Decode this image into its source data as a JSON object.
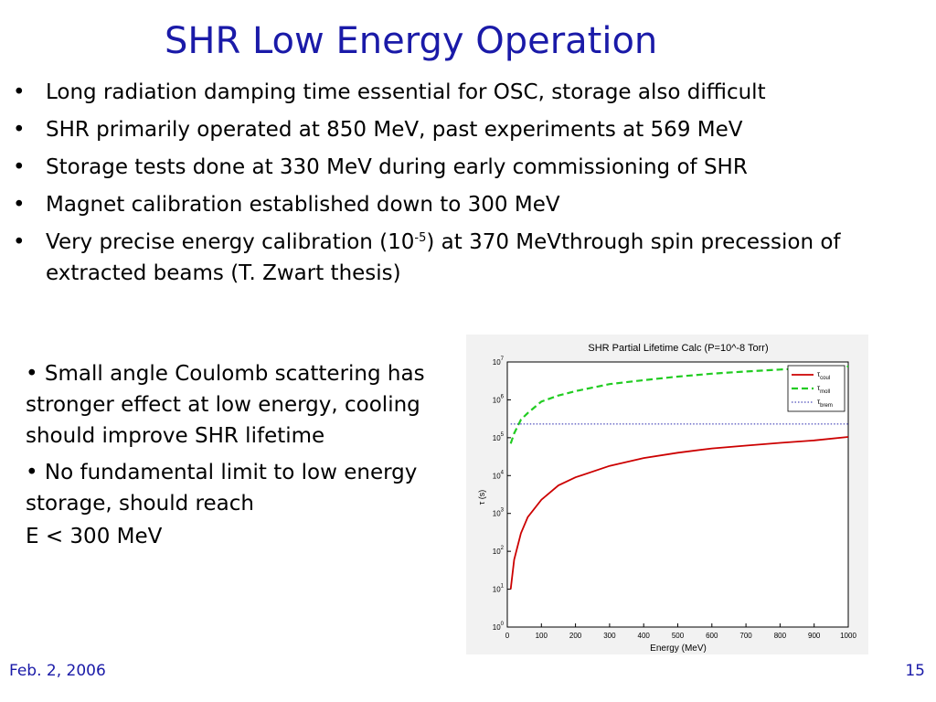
{
  "slide": {
    "title": "SHR Low Energy Operation",
    "bullets": [
      {
        "text": "Long radiation damping time essential for OSC, storage also difficult"
      },
      {
        "text": "SHR primarily operated at 850 MeV, past experiments at 569 MeV"
      },
      {
        "text": "Storage tests done at 330 MeV during early commissioning of SHR"
      },
      {
        "text": "Magnet calibration established down to 300 MeV"
      },
      {
        "text_before": "Very precise energy calibration (10",
        "sup": "-5",
        "text_after": ") at 370 MeVthrough spin precession of extracted beams (T. Zwart thesis)"
      }
    ],
    "left_text": {
      "p1": "• Small angle Coulomb scattering has stronger effect at low energy, cooling should improve SHR lifetime",
      "p2_line1": "• No fundamental limit to low energy storage, should reach",
      "p2_line2": "E < 300 MeV"
    },
    "footer": {
      "date": "Feb. 2, 2006",
      "page": "15"
    }
  },
  "chart_data": {
    "type": "line",
    "title": "SHR Partial Lifetime Calc (P=10^-8 Torr)",
    "xlabel": "Energy (MeV)",
    "ylabel": "τ (s)",
    "xlim": [
      0,
      1000
    ],
    "ylim_log10": [
      0,
      7
    ],
    "y_scale": "log",
    "xticks": [
      0,
      100,
      200,
      300,
      400,
      500,
      600,
      700,
      800,
      900,
      1000
    ],
    "yticks_exp": [
      0,
      1,
      2,
      3,
      4,
      5,
      6,
      7
    ],
    "grid": false,
    "legend_position": "top-right",
    "series": [
      {
        "name_base": "τ",
        "name_sub": "coul",
        "color": "#cc0000",
        "style": "solid",
        "x": [
          10,
          20,
          40,
          60,
          100,
          150,
          200,
          300,
          400,
          500,
          600,
          700,
          800,
          900,
          1000
        ],
        "y": [
          10,
          60,
          300,
          800,
          2300,
          5500,
          9000,
          18000,
          29000,
          40000,
          52000,
          62000,
          73000,
          85000,
          105000
        ]
      },
      {
        "name_base": "τ",
        "name_sub": "moll",
        "color": "#22cc22",
        "style": "dashed",
        "x": [
          10,
          20,
          40,
          60,
          100,
          150,
          200,
          300,
          400,
          500,
          600,
          700,
          800,
          900,
          1000
        ],
        "y": [
          70000,
          130000,
          300000,
          450000,
          900000,
          1300000,
          1700000,
          2600000,
          3300000,
          4100000,
          4900000,
          5600000,
          6300000,
          7000000,
          7600000
        ]
      },
      {
        "name_base": "τ",
        "name_sub": "brem",
        "color": "#2222aa",
        "style": "dotted",
        "x": [
          10,
          1000
        ],
        "y": [
          230000,
          230000
        ]
      }
    ]
  }
}
